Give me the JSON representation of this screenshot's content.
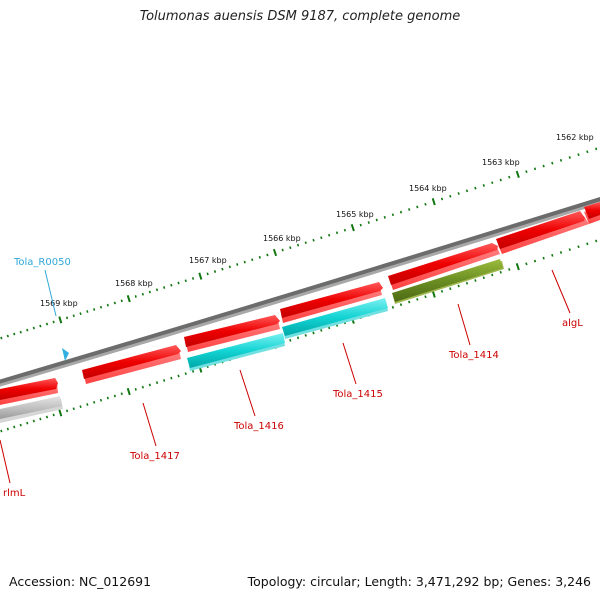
{
  "title": "Tolumonas auensis DSM 9187, complete genome",
  "footer": {
    "accession": "Accession: NC_012691",
    "summary": "Topology: circular; Length: 3,471,292 bp; Genes: 3,246"
  },
  "scale_labels": [
    "1562 kbp",
    "1563 kbp",
    "1564 kbp",
    "1565 kbp",
    "1566 kbp",
    "1567 kbp",
    "1568 kbp",
    "1569 kbp"
  ],
  "genes": [
    {
      "name": "algL",
      "color": "#ff0000"
    },
    {
      "name": "Tola_1414",
      "color": "#6b8e23"
    },
    {
      "name": "Tola_1415",
      "color": "#00cccc"
    },
    {
      "name": "Tola_1416",
      "color": "#00cccc"
    },
    {
      "name": "Tola_1417",
      "color": "#ff0000"
    },
    {
      "name": "rlmL",
      "color": "#ff0000"
    },
    {
      "name": "Tola_R0050",
      "color": "#30a8d8"
    }
  ],
  "colors": {
    "backbone": "#707070",
    "scale_ticks": "#117711",
    "cds": "#ff0000",
    "label_text": "#cc0000",
    "rna_text": "#30a8d8"
  }
}
